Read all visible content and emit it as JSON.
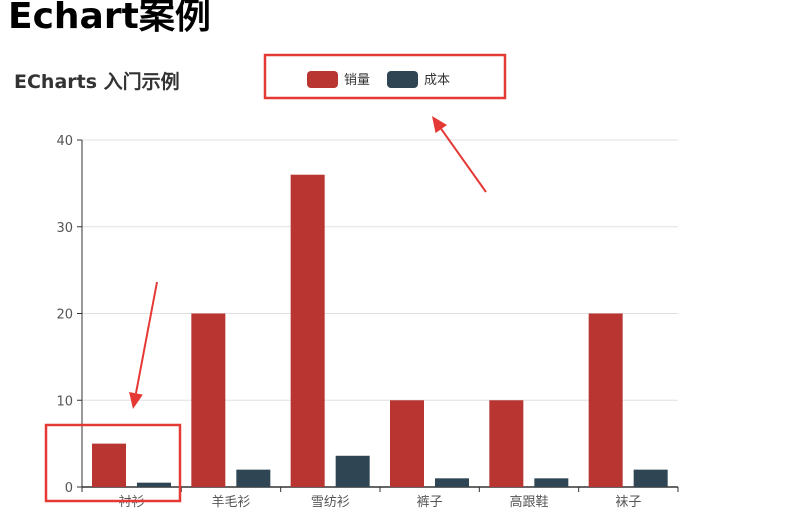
{
  "page": {
    "heading": "Echart案例"
  },
  "chart_data": {
    "type": "bar",
    "title": "ECharts 入门示例",
    "categories": [
      "衬衫",
      "羊毛衫",
      "雪纺衫",
      "裤子",
      "高跟鞋",
      "袜子"
    ],
    "series": [
      {
        "name": "销量",
        "color": "#b83532",
        "values": [
          5,
          20,
          36,
          10,
          10,
          20
        ]
      },
      {
        "name": "成本",
        "color": "#2f4554",
        "values": [
          0.5,
          2,
          3.6,
          1,
          1,
          2
        ]
      }
    ],
    "ylim": [
      0,
      40
    ],
    "yticks": [
      0,
      10,
      20,
      30,
      40
    ],
    "grid": true,
    "legend_position": "top-center",
    "annotation_color": "#e53935"
  }
}
